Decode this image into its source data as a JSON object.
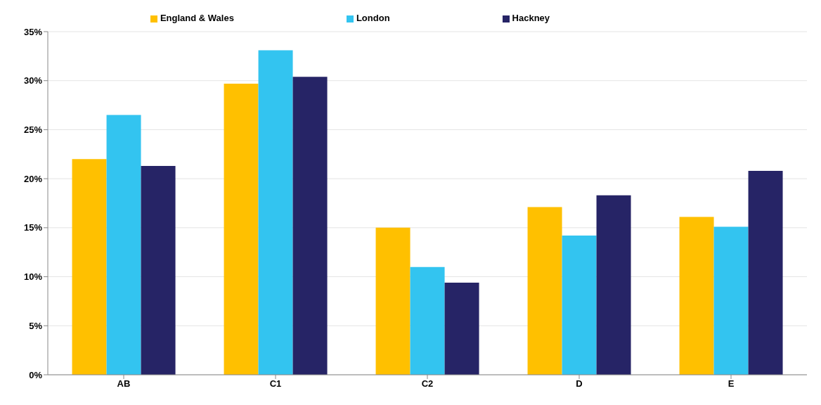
{
  "chart_data": {
    "type": "bar",
    "categories": [
      "AB",
      "C1",
      "C2",
      "D",
      "E"
    ],
    "series": [
      {
        "name": "England & Wales",
        "color": "#ffc000",
        "values": [
          22.0,
          29.7,
          15.0,
          17.1,
          16.1
        ]
      },
      {
        "name": "London",
        "color": "#33c4f0",
        "values": [
          26.5,
          33.1,
          11.0,
          14.2,
          15.1
        ]
      },
      {
        "name": "Hackney",
        "color": "#262466",
        "values": [
          21.3,
          30.4,
          9.4,
          18.3,
          20.8
        ]
      }
    ],
    "ylim": [
      0,
      35
    ],
    "yticks": [
      {
        "value": 0,
        "label": "0%"
      },
      {
        "value": 5,
        "label": "5%"
      },
      {
        "value": 10,
        "label": "10%"
      },
      {
        "value": 15,
        "label": "15%"
      },
      {
        "value": 20,
        "label": "20%"
      },
      {
        "value": 25,
        "label": "25%"
      },
      {
        "value": 30,
        "label": "30%"
      },
      {
        "value": 35,
        "label": "35%"
      }
    ],
    "grid": "y",
    "legend": "top"
  }
}
